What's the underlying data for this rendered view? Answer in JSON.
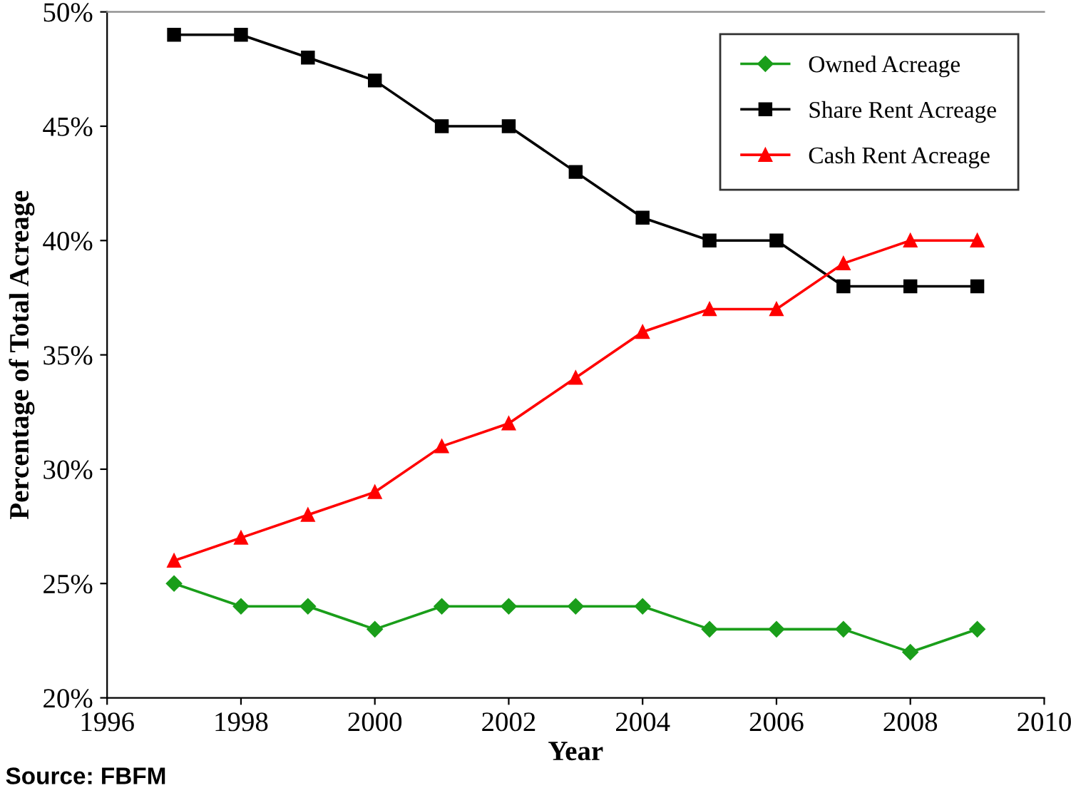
{
  "chart_data": {
    "type": "line",
    "xlabel": "Year",
    "ylabel": "Percentage of Total Acreage",
    "x": [
      1997,
      1998,
      1999,
      2000,
      2001,
      2002,
      2003,
      2004,
      2005,
      2006,
      2007,
      2008,
      2009
    ],
    "series": [
      {
        "name": "Owned Acreage",
        "color": "#1a9e1a",
        "marker": "diamond",
        "values": [
          25,
          24,
          24,
          23,
          24,
          24,
          24,
          24,
          23,
          23,
          23,
          22,
          23
        ]
      },
      {
        "name": "Share Rent Acreage",
        "color": "#000000",
        "marker": "square",
        "values": [
          49,
          49,
          48,
          47,
          45,
          45,
          43,
          41,
          40,
          40,
          38,
          38,
          38
        ]
      },
      {
        "name": "Cash Rent Acreage",
        "color": "#ff0000",
        "marker": "triangle",
        "values": [
          26,
          27,
          28,
          29,
          31,
          32,
          34,
          36,
          37,
          37,
          39,
          40,
          40
        ]
      }
    ],
    "xlim": [
      1996,
      2010
    ],
    "xticks": [
      1996,
      1998,
      2000,
      2002,
      2004,
      2006,
      2008,
      2010
    ],
    "ylim": [
      20,
      50
    ],
    "yticks": [
      {
        "value": 20,
        "label": "20%"
      },
      {
        "value": 25,
        "label": "25%"
      },
      {
        "value": 30,
        "label": "30%"
      },
      {
        "value": 35,
        "label": "35%"
      },
      {
        "value": 40,
        "label": "40%"
      },
      {
        "value": 45,
        "label": "45%"
      },
      {
        "value": 50,
        "label": "50%"
      }
    ],
    "grid": false,
    "legend": "top right",
    "line_style": "solid",
    "annotations": [
      "Source: FBFM"
    ]
  }
}
